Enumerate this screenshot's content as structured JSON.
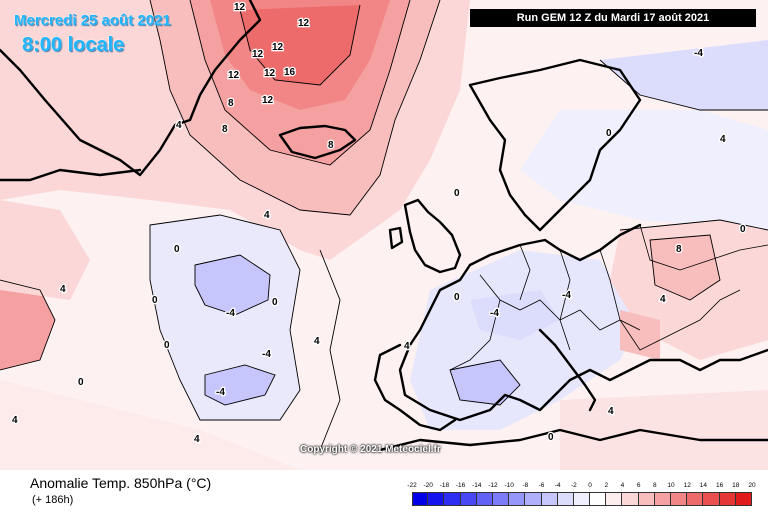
{
  "title": {
    "date": "Mercredi 25 août 2021",
    "hour": "8:00 locale"
  },
  "run": "Run GEM 12 Z du Mardi 17 août 2021",
  "copyright": "Copyright © 2021 Meteociel.fr",
  "variable": "Anomalie Temp. 850hPa (°C)",
  "lead_time": "(+ 186h)",
  "legend": {
    "labels": [
      "-22",
      "-20",
      "-18",
      "-16",
      "-14",
      "-12",
      "-10",
      "-8",
      "-6",
      "-4",
      "-2",
      "0",
      "2",
      "4",
      "6",
      "8",
      "10",
      "12",
      "14",
      "16",
      "18",
      "20"
    ],
    "colors": [
      "#0000e6",
      "#1414ee",
      "#2e2ef2",
      "#4848f5",
      "#6262f7",
      "#7c7cf9",
      "#9696fa",
      "#afaffb",
      "#c6c6fc",
      "#dcdcfd",
      "#efeffe",
      "#ffffff",
      "#fdeeee",
      "#fbd7d7",
      "#f8bdbd",
      "#f5a1a1",
      "#f28686",
      "#ee6b6b",
      "#ea5050",
      "#e53535",
      "#e01b1b"
    ]
  },
  "map_labels": [
    {
      "text": "12"
    },
    {
      "text": "12"
    },
    {
      "text": "12"
    },
    {
      "text": "12"
    },
    {
      "text": "12"
    },
    {
      "text": "12"
    },
    {
      "text": "16"
    },
    {
      "text": "12"
    },
    {
      "text": "8"
    },
    {
      "text": "8"
    },
    {
      "text": "8"
    },
    {
      "text": "4"
    },
    {
      "text": "4"
    },
    {
      "text": "4"
    },
    {
      "text": "4"
    },
    {
      "text": "0"
    },
    {
      "text": "0"
    },
    {
      "text": "0"
    },
    {
      "text": "0"
    },
    {
      "text": "-4"
    },
    {
      "text": "-4"
    },
    {
      "text": "-4"
    },
    {
      "text": "8"
    },
    {
      "text": "4"
    },
    {
      "text": "4"
    },
    {
      "text": "0"
    },
    {
      "text": "-4"
    },
    {
      "text": "0"
    },
    {
      "text": "4"
    },
    {
      "text": "0"
    },
    {
      "text": "-4"
    },
    {
      "text": "0"
    },
    {
      "text": "4"
    },
    {
      "text": "0"
    },
    {
      "text": "4"
    },
    {
      "text": "-4"
    },
    {
      "text": "0"
    },
    {
      "text": "4"
    }
  ]
}
